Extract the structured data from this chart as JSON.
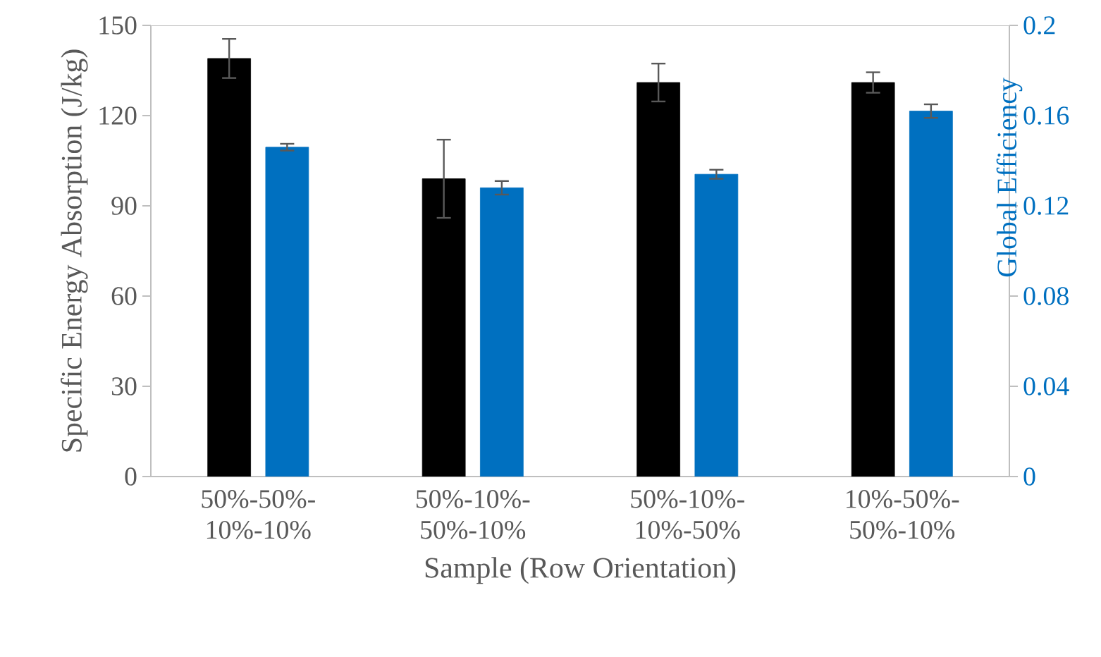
{
  "chart_data": {
    "type": "bar",
    "xlabel": "Sample (Row Orientation)",
    "ylabel": "Specific Energy Absorption (J/kg)",
    "y2label": "Global Efficiency",
    "categories": [
      "50%-50%-10%-10%",
      "50%-10%-50%-10%",
      "50%-10%-10%-50%",
      "10%-50%-50%-10%"
    ],
    "series": [
      {
        "color": "#000000",
        "values": [
          139,
          99,
          131,
          131
        ],
        "errors": [
          6.5,
          13,
          6.3,
          3.4
        ]
      },
      {
        "color": "#0070c0",
        "axis": "y2",
        "values": [
          0.146,
          0.128,
          0.134,
          0.162
        ],
        "errors": [
          0.0015,
          0.003,
          0.002,
          0.003
        ]
      }
    ],
    "ylim": [
      0,
      150
    ],
    "yticks": [
      0,
      30,
      60,
      90,
      120,
      150
    ],
    "y2lim": [
      0,
      0.2
    ],
    "y2ticks": [
      0,
      0.04,
      0.08,
      0.12,
      0.16,
      0.2
    ],
    "grid": false
  }
}
